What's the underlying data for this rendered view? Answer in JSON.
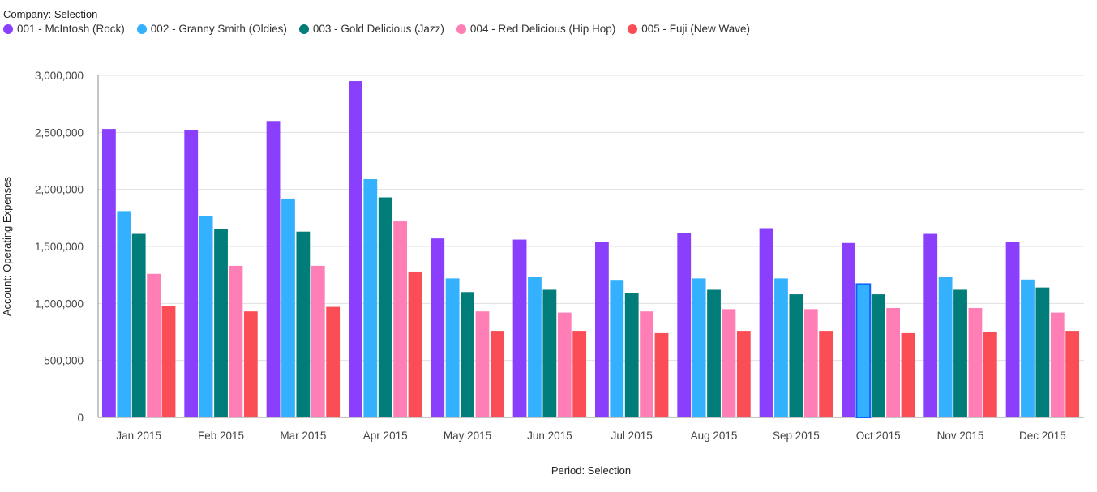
{
  "legend": {
    "title": "Company: Selection"
  },
  "chart_data": {
    "type": "bar",
    "xlabel": "Period: Selection",
    "ylabel": "Account: Operating Expenses",
    "ylim": [
      0,
      3000000
    ],
    "yticks": [
      0,
      500000,
      1000000,
      1500000,
      2000000,
      2500000,
      3000000
    ],
    "ytick_labels": [
      "0",
      "500,000",
      "1,000,000",
      "1,500,000",
      "2,000,000",
      "2,500,000",
      "3,000,000"
    ],
    "grid": true,
    "legend_position": "top-left",
    "categories": [
      "Jan 2015",
      "Feb 2015",
      "Mar 2015",
      "Apr 2015",
      "May 2015",
      "Jun 2015",
      "Jul 2015",
      "Aug 2015",
      "Sep 2015",
      "Oct 2015",
      "Nov 2015",
      "Dec 2015"
    ],
    "highlighted": {
      "series": 1,
      "category": 9
    },
    "series": [
      {
        "name": "001 - McIntosh (Rock)",
        "color": "#8a3ffc",
        "values": [
          2530000,
          2520000,
          2600000,
          2950000,
          1570000,
          1560000,
          1540000,
          1620000,
          1660000,
          1530000,
          1610000,
          1540000
        ]
      },
      {
        "name": "002 - Granny Smith (Oldies)",
        "color": "#33b1ff",
        "values": [
          1810000,
          1770000,
          1920000,
          2090000,
          1220000,
          1230000,
          1200000,
          1220000,
          1220000,
          1170000,
          1230000,
          1210000
        ]
      },
      {
        "name": "003 - Gold Delicious (Jazz)",
        "color": "#007d79",
        "values": [
          1610000,
          1650000,
          1630000,
          1930000,
          1100000,
          1120000,
          1090000,
          1120000,
          1080000,
          1080000,
          1120000,
          1140000
        ]
      },
      {
        "name": "004 - Red Delicious (Hip Hop)",
        "color": "#ff7eb6",
        "values": [
          1260000,
          1330000,
          1330000,
          1720000,
          930000,
          920000,
          930000,
          950000,
          950000,
          960000,
          960000,
          920000
        ]
      },
      {
        "name": "005 - Fuji (New Wave)",
        "color": "#fa4d56",
        "values": [
          980000,
          930000,
          970000,
          1280000,
          760000,
          760000,
          740000,
          760000,
          760000,
          740000,
          750000,
          760000
        ]
      }
    ]
  }
}
